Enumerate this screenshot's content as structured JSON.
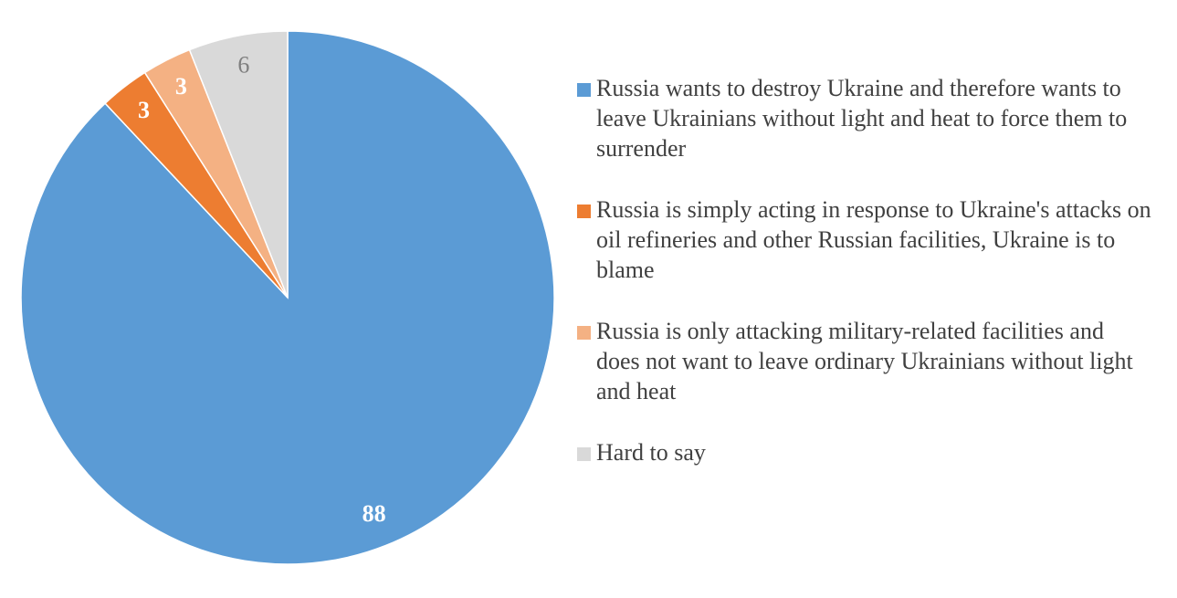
{
  "chart_data": {
    "type": "pie",
    "categories": [
      "Russia wants to destroy Ukraine and therefore wants to leave Ukrainians without light and heat to force them to surrender",
      "Russia is simply acting in response to Ukraine's attacks on oil refineries and other Russian facilities, Ukraine is to blame",
      "Russia is only attacking military-related facilities and does not want to leave ordinary Ukrainians without light and heat",
      "Hard to say"
    ],
    "values": [
      88,
      3,
      3,
      6
    ],
    "colors": [
      "#5b9bd5",
      "#ed7d31",
      "#f4b183",
      "#d9d9d9"
    ],
    "legend": "right"
  }
}
